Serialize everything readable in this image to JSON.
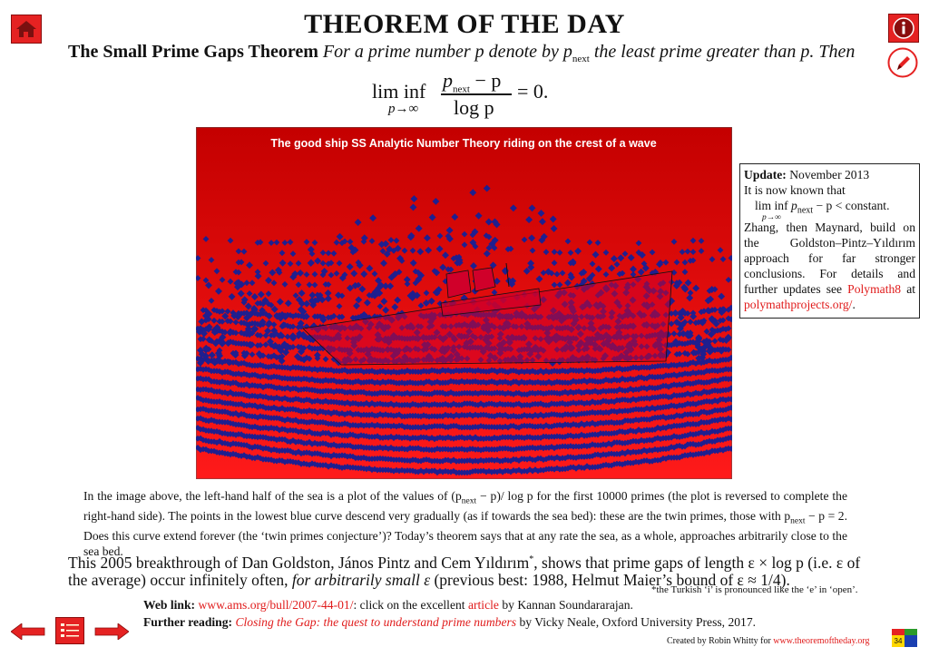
{
  "header": {
    "title": "THEOREM OF THE DAY",
    "theorem_name": "The Small Prime Gaps Theorem",
    "statement_intro": "For a prime number p denote by p",
    "statement_sub": "next",
    "statement_rest": " the least prime greater than p. Then",
    "formula": {
      "lim": "lim inf",
      "limit_sub": "p→∞",
      "numerator_p": "p",
      "numerator_sub": "next",
      "numerator_rest": " − p",
      "denominator": "log p",
      "result": "= 0."
    }
  },
  "plot": {
    "title": "The good ship SS Analytic Number Theory riding on the crest of a wave",
    "colors": {
      "sky_top": "#c40000",
      "sky_bottom": "#ff1a1a",
      "dots": "#1f1f8f",
      "ship": "#d4002a"
    }
  },
  "update_box": {
    "label": "Update:",
    "date": " November 2013",
    "line1": "It is now known that",
    "formula_lim": "lim inf",
    "formula_sub": "p→∞",
    "formula_p": "p",
    "formula_next": "next",
    "formula_rest": " − p < constant.",
    "body": "Zhang, then Maynard, build on the Goldston–Pintz–Yıldırım approach for far stronger conclusions.  For details and further updates see ",
    "link1": "Polymath8",
    "at": " at",
    "link2": "polymathprojects.org/",
    "end": "."
  },
  "caption": {
    "part1": "In the image above, the left-hand half of the sea is a plot of the values of (p",
    "sub1": "next",
    "part2": " − p)/ log p for the first 10000 primes (the plot is reversed to complete the right-hand side). The points in the lowest blue curve descend very gradually (as if towards the sea bed): these are the twin primes, those with p",
    "sub2": "next",
    "part3": " − p = 2. Does this curve extend forever (the ‘twin primes conjecture’)? Today’s theorem says that at any rate the sea, as a whole, approaches arbitrarily close to the sea bed."
  },
  "paragraph": {
    "part1": "This 2005 breakthrough of Dan Goldston, János Pintz and Cem Yıldırım",
    "star": "*",
    "part2": ", shows that prime gaps of length ε × log p (i.e. ε of the average) occur infinitely often, ",
    "italic": "for arbitrarily small ε",
    "part3": " (previous best: 1988, Helmut Maier’s bound of ε ≈ 1/4)."
  },
  "footnote": "*the Turkish ‘i’ is pronounced like the ‘e’ in ‘open’.",
  "links": {
    "web_label": "Web link:",
    "web_url": "www.ams.org/bull/2007-44-01/",
    "web_rest": ": click on the excellent ",
    "web_article": "article",
    "web_by": " by Kannan Soundararajan.",
    "further_label": "Further reading:",
    "further_title": "Closing the Gap: the quest to understand prime numbers",
    "further_rest": " by Vicky Neale, Oxford University Press, 2017."
  },
  "credit": {
    "text": "Created by Robin Whitty for ",
    "url": "www.theoremoftheday.org"
  },
  "index_badge": "34",
  "icons": [
    "home-icon",
    "info-icon",
    "pencil-icon",
    "arrow-left-icon",
    "contents-icon",
    "arrow-right-icon"
  ],
  "accent_color": "#e52222"
}
